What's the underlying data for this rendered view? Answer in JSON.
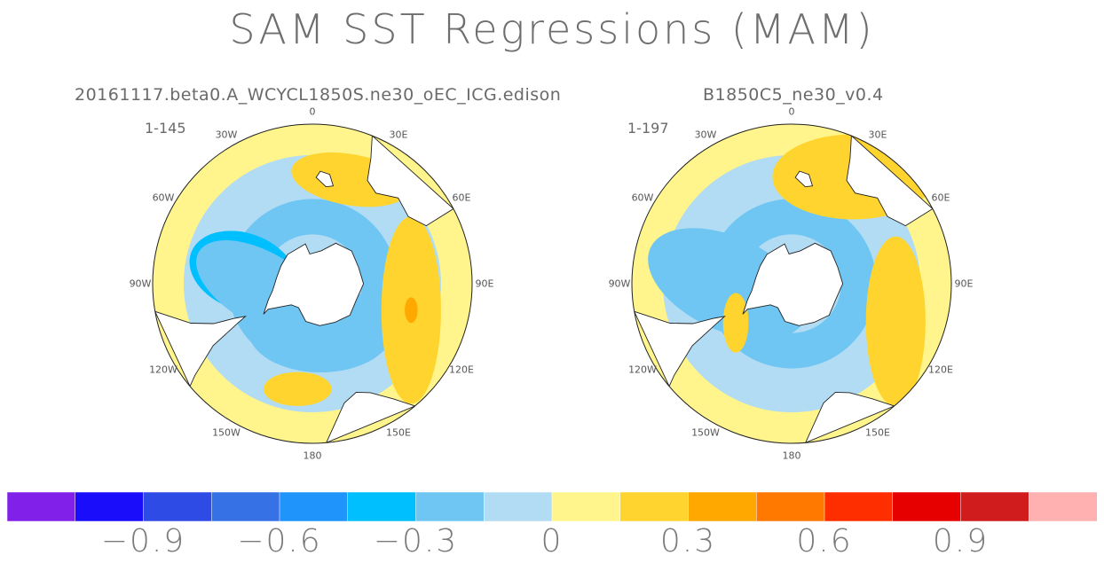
{
  "title": "SAM SST Regressions (MAM)",
  "chart_data": [
    {
      "type": "heatmap",
      "projection": "south-polar-stereographic",
      "title": "20161117.beta0.A_WCYCL1850S.ne30_oEC_ICG.edison",
      "years": "1-145",
      "lon_labels": [
        "0",
        "30E",
        "60E",
        "90E",
        "120E",
        "150E",
        "180",
        "150W",
        "120W",
        "90W",
        "60W",
        "30W"
      ],
      "features": [
        {
          "level": -0.4,
          "lon": -100,
          "colat": 33,
          "sx": 26,
          "sy": 18,
          "rot": 20
        },
        {
          "level": -0.3,
          "lon": -85,
          "colat": 24,
          "sx": 34,
          "sy": 17,
          "rot": 30
        },
        {
          "level": -0.2,
          "lon": 10,
          "colat": 22,
          "sx": 34,
          "sy": 20,
          "rot": 0
        },
        {
          "level": 0.2,
          "lon": 75,
          "colat": 48,
          "sx": 14,
          "sy": 44,
          "rot": 0
        },
        {
          "level": 0.3,
          "lon": 75,
          "colat": 48,
          "sx": 3,
          "sy": 6,
          "rot": 0
        },
        {
          "level": 0.2,
          "lon": 160,
          "colat": 52,
          "sx": 28,
          "sy": 12,
          "rot": 10
        },
        {
          "level": 0.2,
          "lon": -8,
          "colat": 50,
          "sx": 16,
          "sy": 8,
          "rot": 0
        }
      ]
    },
    {
      "type": "heatmap",
      "projection": "south-polar-stereographic",
      "title": "B1850C5_ne30_v0.4",
      "years": "1-197",
      "lon_labels": [
        "0",
        "30E",
        "60E",
        "90E",
        "120E",
        "150E",
        "180",
        "150W",
        "120W",
        "90W",
        "60W",
        "30W"
      ],
      "features": [
        {
          "level": -0.4,
          "lon": -100,
          "colat": 36,
          "sx": 26,
          "sy": 18,
          "rot": 20
        },
        {
          "level": -0.3,
          "lon": -90,
          "colat": 30,
          "sx": 40,
          "sy": 22,
          "rot": 25
        },
        {
          "level": 0.2,
          "lon": 70,
          "colat": 52,
          "sx": 14,
          "sy": 40,
          "rot": 0
        },
        {
          "level": 0.3,
          "lon": 150,
          "colat": 58,
          "sx": 22,
          "sy": 12,
          "rot": 0
        },
        {
          "level": 0.2,
          "lon": 150,
          "colat": 58,
          "sx": 38,
          "sy": 20,
          "rot": 0
        },
        {
          "level": 0.2,
          "lon": -55,
          "colat": 32,
          "sx": 6,
          "sy": 14,
          "rot": 0
        }
      ]
    }
  ],
  "colorbar": {
    "boundaries": [
      -1.05,
      -0.9,
      -0.75,
      -0.6,
      -0.45,
      -0.3,
      -0.15,
      0,
      0.15,
      0.3,
      0.45,
      0.6,
      0.75,
      0.9,
      1.05
    ],
    "colors": [
      "#8020e8",
      "#1a0dfa",
      "#2f4be6",
      "#3672e6",
      "#1f94fa",
      "#00bfff",
      "#6fc6f3",
      "#b2dcf3",
      "#fff58c",
      "#ffd42e",
      "#ffa800",
      "#ff7800",
      "#ff2e00",
      "#e60000",
      "#d01c1c",
      "#ffb0b0"
    ],
    "tick_labels": [
      "-0.9",
      "-0.6",
      "-0.3",
      "0",
      "0.3",
      "0.6",
      "0.9"
    ]
  }
}
